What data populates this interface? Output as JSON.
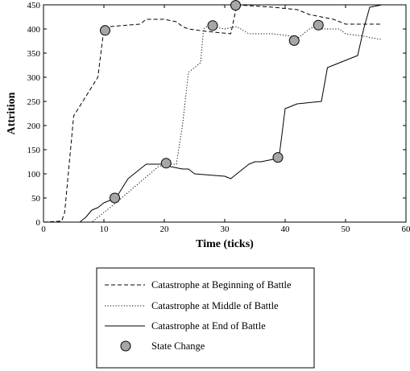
{
  "chart_data": {
    "type": "line",
    "title": "",
    "xlabel": "Time (ticks)",
    "ylabel": "Attrition",
    "xlim": [
      0,
      60
    ],
    "ylim": [
      0,
      450
    ],
    "xticks": [
      0,
      10,
      20,
      30,
      40,
      50,
      60
    ],
    "yticks": [
      0,
      50,
      100,
      150,
      200,
      250,
      300,
      350,
      400,
      450
    ],
    "grid": false,
    "legend_position": "below",
    "series": [
      {
        "name": "Catastrophe at Beginning of Battle",
        "style": "dashed",
        "x": [
          0,
          3,
          3.5,
          5,
          7,
          9,
          10,
          11,
          16,
          17,
          20,
          22,
          23,
          24,
          27,
          31,
          31.5,
          32,
          38,
          42,
          44,
          48,
          50,
          56
        ],
        "y": [
          0,
          2,
          20,
          220,
          260,
          300,
          400,
          405,
          410,
          420,
          420,
          415,
          405,
          400,
          395,
          390,
          420,
          450,
          445,
          440,
          430,
          420,
          410,
          410
        ]
      },
      {
        "name": "Catastrophe at Middle of Battle",
        "style": "dotted",
        "x": [
          0,
          8,
          12,
          19,
          20.5,
          22,
          23,
          24,
          25,
          26,
          26.5,
          27,
          28,
          30,
          32,
          34,
          38,
          41,
          42,
          44,
          45,
          46,
          49,
          50,
          53,
          56
        ],
        "y": [
          0,
          0,
          40,
          115,
          120,
          120,
          200,
          310,
          320,
          330,
          400,
          405,
          405,
          400,
          405,
          390,
          390,
          385,
          380,
          400,
          405,
          400,
          400,
          390,
          385,
          378
        ]
      },
      {
        "name": "Catastrophe at End of Battle",
        "style": "solid",
        "x": [
          0,
          6,
          7,
          8,
          9,
          10,
          12,
          13,
          14,
          15,
          17,
          20,
          21,
          23,
          24,
          25,
          30,
          31,
          34,
          35,
          36,
          38,
          39,
          40,
          42,
          46,
          47,
          52,
          53,
          54,
          56
        ],
        "y": [
          0,
          0,
          10,
          25,
          30,
          40,
          50,
          70,
          90,
          100,
          120,
          120,
          115,
          110,
          110,
          100,
          95,
          90,
          120,
          125,
          125,
          130,
          135,
          235,
          245,
          250,
          320,
          345,
          400,
          445,
          450
        ]
      }
    ],
    "state_changes": {
      "name": "State Change",
      "points": [
        {
          "x": 10.2,
          "y": 397
        },
        {
          "x": 11.8,
          "y": 50
        },
        {
          "x": 20.3,
          "y": 122
        },
        {
          "x": 28.0,
          "y": 407
        },
        {
          "x": 31.8,
          "y": 449
        },
        {
          "x": 38.8,
          "y": 134
        },
        {
          "x": 41.5,
          "y": 376
        },
        {
          "x": 45.5,
          "y": 408
        }
      ]
    },
    "legend": [
      {
        "label": "Catastrophe at Beginning of Battle",
        "style": "dashed"
      },
      {
        "label": "Catastrophe at Middle of Battle",
        "style": "dotted"
      },
      {
        "label": "Catastrophe at End of Battle",
        "style": "solid"
      },
      {
        "label": "State Change",
        "style": "marker"
      }
    ],
    "colors": {
      "line": "#000000",
      "marker_fill": "#a6a6a6",
      "marker_stroke": "#000000"
    }
  }
}
